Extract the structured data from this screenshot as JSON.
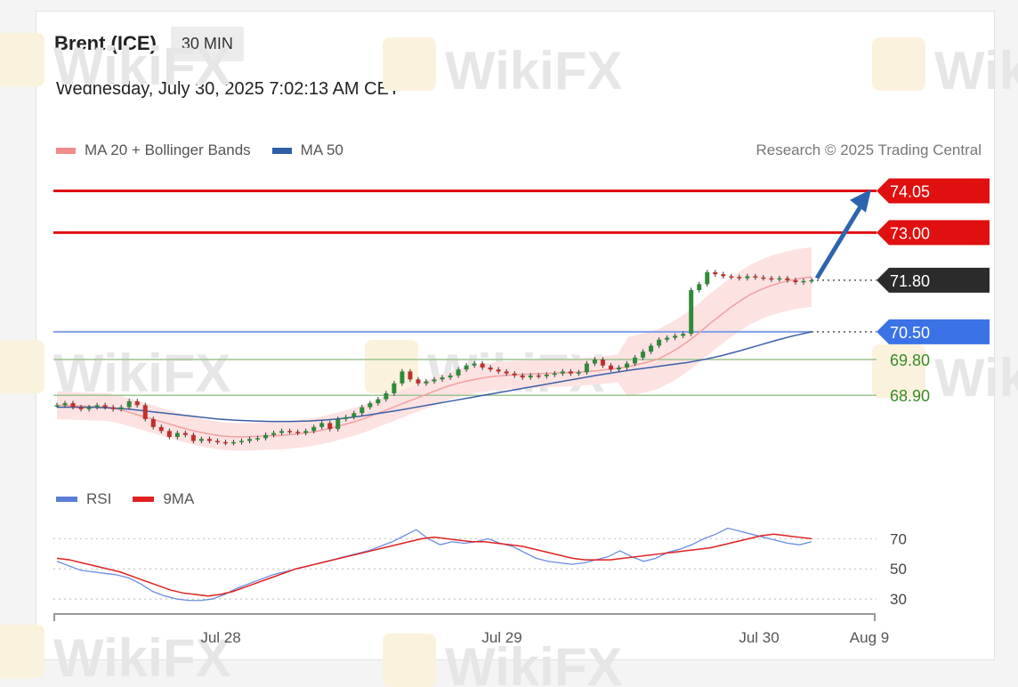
{
  "header": {
    "instrument": "Brent (ICE)",
    "timeframe": "30 MIN",
    "datetime": "Wednesday, July 30, 2025 7:02:13 AM CET"
  },
  "legend": {
    "items": [
      {
        "label": "MA 20 + Bollinger Bands",
        "color": "#f28b8b"
      },
      {
        "label": "MA 50",
        "color": "#2d5fa8"
      }
    ],
    "credit": "Research © 2025 Trading Central"
  },
  "rsi_legend": {
    "items": [
      {
        "label": "RSI",
        "color": "#5b7fd6"
      },
      {
        "label": "9MA",
        "color": "#e02020"
      }
    ]
  },
  "watermark": "WikiFX",
  "chart_data": [
    {
      "type": "candlestick",
      "ylim": [
        67.2,
        74.6
      ],
      "x_ticks": [
        "Jul 28",
        "Jul 29",
        "Jul 30",
        "Aug 9"
      ],
      "levels": [
        {
          "label": "74.05",
          "value": 74.05,
          "kind": "resistance",
          "color": "#e01010"
        },
        {
          "label": "73.00",
          "value": 73.0,
          "kind": "resistance",
          "color": "#e01010"
        },
        {
          "label": "71.80",
          "value": 71.8,
          "kind": "last",
          "color": "#2b2b2b"
        },
        {
          "label": "70.50",
          "value": 70.5,
          "kind": "pivot",
          "color": "#3b73e6"
        },
        {
          "label": "69.80",
          "value": 69.8,
          "kind": "support",
          "color": "#3a8a2a"
        },
        {
          "label": "68.90",
          "value": 68.9,
          "kind": "support",
          "color": "#3a8a2a"
        }
      ],
      "close": [
        68.65,
        68.7,
        68.6,
        68.55,
        68.6,
        68.65,
        68.6,
        68.55,
        68.6,
        68.75,
        68.65,
        68.3,
        68.1,
        68.0,
        67.85,
        67.95,
        67.9,
        67.75,
        67.8,
        67.75,
        67.72,
        67.7,
        67.72,
        67.75,
        67.8,
        67.82,
        67.9,
        67.95,
        68.0,
        67.98,
        67.95,
        68.0,
        68.1,
        68.2,
        68.05,
        68.3,
        68.35,
        68.45,
        68.6,
        68.7,
        68.8,
        68.95,
        69.2,
        69.5,
        69.3,
        69.2,
        69.25,
        69.3,
        69.35,
        69.4,
        69.55,
        69.65,
        69.7,
        69.6,
        69.55,
        69.5,
        69.45,
        69.4,
        69.35,
        69.4,
        69.38,
        69.42,
        69.45,
        69.5,
        69.45,
        69.48,
        69.7,
        69.8,
        69.65,
        69.55,
        69.6,
        69.7,
        69.85,
        70.0,
        70.15,
        70.3,
        70.35,
        70.4,
        70.45,
        71.55,
        71.7,
        72.0,
        71.95,
        71.9,
        71.88,
        71.85,
        71.9,
        71.87,
        71.85,
        71.82,
        71.85,
        71.8,
        71.75,
        71.78,
        71.8
      ],
      "ma20": [
        68.65,
        68.64,
        68.63,
        68.62,
        68.61,
        68.6,
        68.55,
        68.48,
        68.4,
        68.33,
        68.25,
        68.18,
        68.1,
        68.03,
        67.97,
        67.92,
        67.88,
        67.86,
        67.85,
        67.86,
        67.87,
        67.88,
        67.89,
        67.91,
        67.94,
        67.97,
        68.02,
        68.08,
        68.15,
        68.22,
        68.3,
        68.4,
        68.5,
        68.6,
        68.7,
        68.8,
        68.9,
        69.0,
        69.1,
        69.18,
        69.25,
        69.3,
        69.35,
        69.38,
        69.4,
        69.42,
        69.43,
        69.44,
        69.45,
        69.46,
        69.47,
        69.48,
        69.5,
        69.52,
        69.55,
        69.58,
        69.62,
        69.68,
        69.74,
        69.82,
        69.95,
        70.1,
        70.28,
        70.48,
        70.7,
        70.9,
        71.1,
        71.28,
        71.44,
        71.56,
        71.66,
        71.74,
        71.8,
        71.85,
        71.88
      ],
      "ma50": [
        68.6,
        68.6,
        68.6,
        68.58,
        68.55,
        68.5,
        68.45,
        68.4,
        68.35,
        68.3,
        68.27,
        68.25,
        68.24,
        68.24,
        68.25,
        68.28,
        68.32,
        68.38,
        68.45,
        68.52,
        68.6,
        68.68,
        68.76,
        68.84,
        68.92,
        69.0,
        69.08,
        69.16,
        69.24,
        69.32,
        69.4,
        69.47,
        69.54,
        69.6,
        69.66,
        69.72,
        69.8,
        69.9,
        70.02,
        70.15,
        70.28,
        70.4,
        70.5
      ],
      "rsi": [
        55,
        52,
        49,
        48,
        47,
        46,
        44,
        40,
        35,
        32,
        30,
        29,
        29,
        30,
        33,
        37,
        40,
        43,
        46,
        48,
        50,
        52,
        54,
        56,
        58,
        60,
        62,
        65,
        68,
        72,
        76,
        70,
        66,
        68,
        67,
        68,
        70,
        67,
        65,
        61,
        57,
        55,
        54,
        53,
        54,
        56,
        58,
        62,
        58,
        55,
        57,
        61,
        63,
        66,
        70,
        73,
        77,
        75,
        73,
        71,
        69,
        67,
        66,
        68
      ],
      "rsi_ma": [
        57,
        56,
        54,
        52,
        50,
        48,
        45,
        42,
        39,
        36,
        34,
        33,
        32,
        33,
        35,
        38,
        41,
        44,
        47,
        50,
        52,
        54,
        56,
        58,
        60,
        62,
        64,
        66,
        68,
        70,
        71,
        70,
        69,
        68,
        68,
        67,
        66,
        65,
        63,
        61,
        59,
        57,
        56,
        56,
        56,
        57,
        58,
        59,
        60,
        61,
        62,
        63,
        64,
        66,
        68,
        70,
        72,
        73,
        72,
        71,
        70
      ]
    },
    {
      "type": "line",
      "title": "",
      "ylim": [
        20,
        85
      ],
      "y_ticks": [
        "70",
        "50",
        "30"
      ]
    }
  ]
}
